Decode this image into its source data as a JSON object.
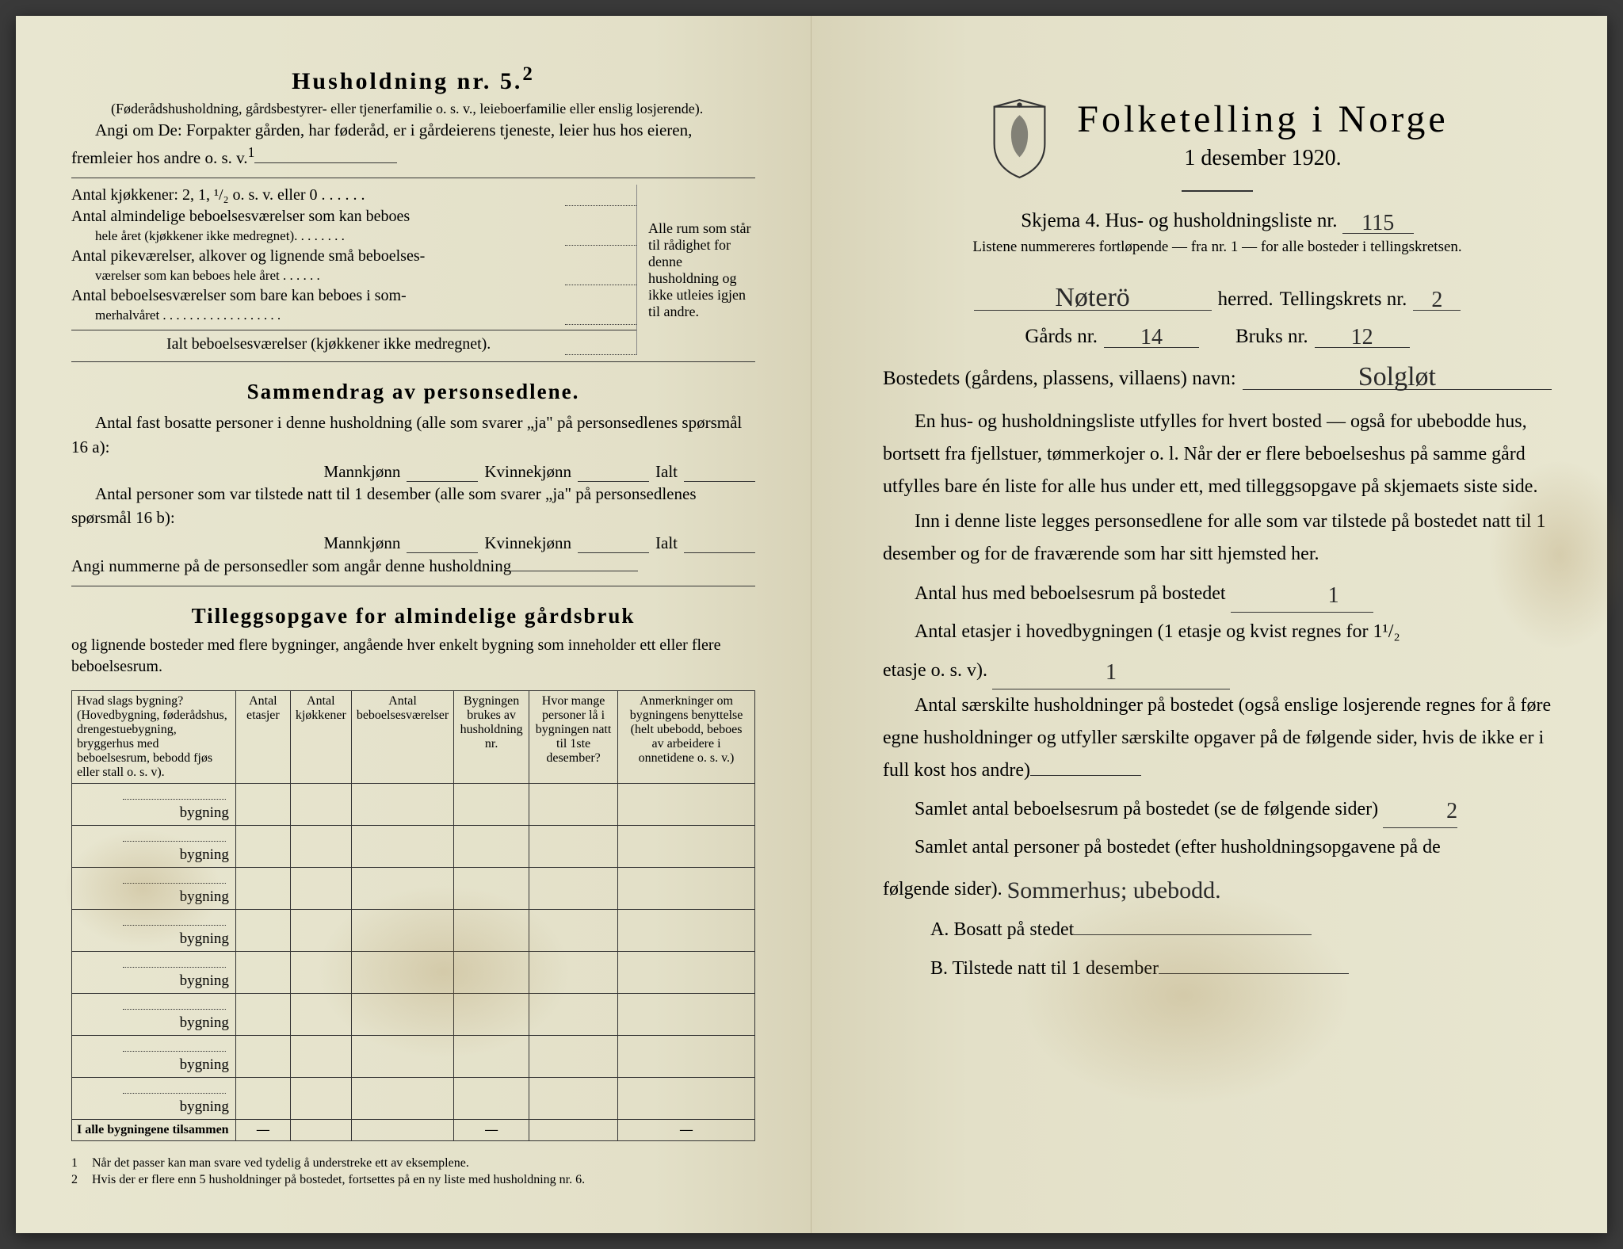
{
  "left": {
    "husholdning_heading": "Husholdning nr. 5.",
    "husholdning_sup": "2",
    "intro_note": "(Føderådshusholdning, gårdsbestyrer- eller tjenerfamilie o. s. v., leieboerfamilie eller enslig losjerende).",
    "angi_text": "Angi om De: Forpakter gården, har føderåd, er i gårdeierens tjeneste, leier hus hos eieren, fremleier hos andre o. s. v.",
    "angi_sup": "1",
    "rooms": {
      "kjokken": "Antal kjøkkener: 2, 1, ¹/₂ o. s. v. eller 0 . . . . . .",
      "almindelige_1": "Antal almindelige beboelsesværelser som kan beboes",
      "almindelige_2": "hele året (kjøkkener ikke medregnet). . . . . . . .",
      "pike_1": "Antal pikeværelser, alkover og lignende små beboelses-",
      "pike_2": "værelser som kan beboes hele året . . . . . .",
      "sommer_1": "Antal beboelsesværelser som bare kan beboes i som-",
      "sommer_2": "merhalvåret . . . . . . . . . . . . . . . . . .",
      "ialt": "Ialt beboelsesværelser (kjøkkener ikke medregnet).",
      "bracket_text": "Alle rum som står til rådighet for denne husholdning og ikke utleies igjen til andre."
    },
    "sammendrag": {
      "title": "Sammendrag av personsedlene.",
      "line1": "Antal fast bosatte personer i denne husholdning (alle som svarer „ja\" på personsedlenes spørsmål 16 a):",
      "line2": "Antal personer som var tilstede natt til 1 desember (alle som svarer „ja\" på personsedlenes spørsmål 16 b):",
      "mann": "Mannkjønn",
      "kvinne": "Kvinnekjønn",
      "ialt": "Ialt",
      "angi_num": "Angi nummerne på de personsedler som angår denne husholdning"
    },
    "tillegg": {
      "title": "Tilleggsopgave for almindelige gårdsbruk",
      "sub": "og lignende bosteder med flere bygninger, angående hver enkelt bygning som inneholder ett eller flere beboelsesrum."
    },
    "table": {
      "headers": [
        "Hvad slags bygning?\n(Hovedbygning, føderådshus, drengestuebygning, bryggerhus med beboelsesrum, bebodd fjøs eller stall o. s. v).",
        "Antal etasjer",
        "Antal kjøkkener",
        "Antal beboelsesværelser",
        "Bygningen brukes av husholdning nr.",
        "Hvor mange personer lå i bygningen natt til 1ste desember?",
        "Anmerkninger om bygningens benyttelse (helt ubebodd, beboes av arbeidere i onnetidene o. s. v.)"
      ],
      "row_label": "bygning",
      "row_count": 8,
      "total_label": "I alle bygningene tilsammen",
      "dash": "—"
    },
    "footnotes": [
      "Når det passer kan man svare ved tydelig å understreke ett av eksemplene.",
      "Hvis der er flere enn 5 husholdninger på bostedet, fortsettes på en ny liste med husholdning nr. 6."
    ]
  },
  "right": {
    "census_title": "Folketelling i Norge",
    "date": "1 desember 1920.",
    "skjema_prefix": "Skjema 4.  Hus- og husholdningsliste nr.",
    "skjema_nr_hw": "115",
    "listene_note": "Listene nummereres fortløpende — fra nr. 1 — for alle bosteder i tellingskretsen.",
    "herred_hw": "Nøterö",
    "herred_label": "herred.",
    "tellingskrets_label": "Tellingskrets nr.",
    "tellingskrets_hw": "2",
    "gards_label": "Gårds nr.",
    "gards_hw": "14",
    "bruks_label": "Bruks nr.",
    "bruks_hw": "12",
    "bosted_label": "Bostedets (gårdens, plassens, villaens) navn:",
    "bosted_hw": "Solgløt",
    "para1": "En hus- og husholdningsliste utfylles for hvert bosted — også for ubebodde hus, bortsett fra fjellstuer, tømmerkojer o. l.  Når der er flere beboelseshus på samme gård utfylles bare én liste for alle hus under ett, med tilleggsopgave på skjemaets siste side.",
    "para2": "Inn i denne liste legges personsedlene for alle som var tilstede på bostedet natt til 1 desember og for de fraværende som har sitt hjemsted her.",
    "antal_hus_label": "Antal hus med beboelsesrum på bostedet",
    "antal_hus_hw": "1",
    "etasjer_label_1": "Antal etasjer i hovedbygningen (1 etasje og kvist regnes for 1¹/₂",
    "etasjer_label_2": "etasje o. s. v).",
    "etasjer_hw": "1",
    "saerskilte": "Antal særskilte husholdninger på bostedet (også enslige losjerende regnes for å føre egne husholdninger og utfyller særskilte opgaver på de følgende sider, hvis de ikke er i full kost hos andre)",
    "samlet_rum_label": "Samlet antal beboelsesrum på bostedet (se de følgende sider)",
    "samlet_rum_hw": "2",
    "samlet_pers_label_1": "Samlet antal personer på bostedet (efter husholdningsopgavene på de",
    "samlet_pers_label_2": "følgende sider).",
    "samlet_pers_hw": "Sommerhus; ubebodd.",
    "a_label": "A.  Bosatt på stedet",
    "b_label": "B.  Tilstede natt til 1 desember"
  },
  "colors": {
    "paper": "#e8e6d0",
    "ink": "#1a1a1a",
    "handwriting": "#2a2a2a",
    "stain": "rgba(160,130,70,0.25)"
  }
}
